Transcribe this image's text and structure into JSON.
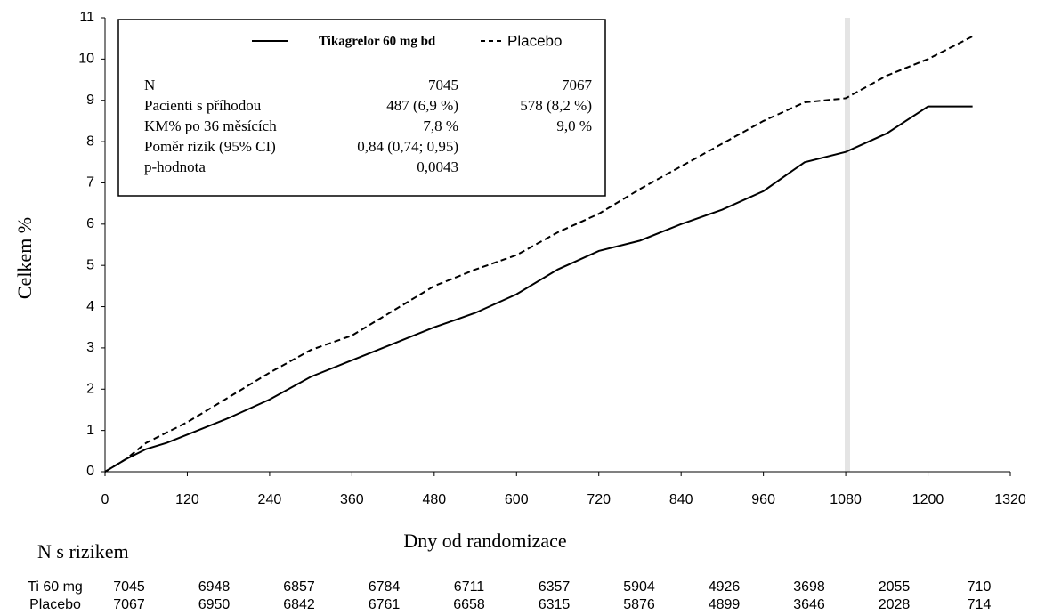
{
  "chart_data": {
    "type": "line",
    "y_label": "Celkem %",
    "x_label": "Dny od randomizace",
    "x": [
      0,
      30,
      60,
      90,
      120,
      180,
      240,
      300,
      360,
      420,
      480,
      540,
      600,
      660,
      720,
      780,
      840,
      900,
      960,
      1020,
      1080,
      1140,
      1200,
      1265
    ],
    "series": [
      {
        "name": "Tikagrelor 60 mg bd",
        "color": "#000000",
        "dash": "solid",
        "values": [
          0,
          0.3,
          0.55,
          0.7,
          0.9,
          1.3,
          1.75,
          2.3,
          2.7,
          3.1,
          3.5,
          3.85,
          4.3,
          4.9,
          5.35,
          5.6,
          6.0,
          6.35,
          6.8,
          7.5,
          7.75,
          8.2,
          8.85,
          8.85
        ]
      },
      {
        "name": "Placebo",
        "color": "#000000",
        "dash": "dashed",
        "values": [
          0,
          0.3,
          0.7,
          0.95,
          1.2,
          1.8,
          2.4,
          2.95,
          3.3,
          3.9,
          4.5,
          4.9,
          5.25,
          5.8,
          6.25,
          6.85,
          7.4,
          7.95,
          8.5,
          8.95,
          9.05,
          9.6,
          10.0,
          10.55
        ]
      }
    ],
    "xlim": [
      0,
      1320
    ],
    "xticks": [
      0,
      120,
      240,
      360,
      480,
      600,
      720,
      840,
      960,
      1080,
      1200,
      1320
    ],
    "ylim": [
      0,
      11
    ],
    "yticks": [
      0,
      1,
      2,
      3,
      4,
      5,
      6,
      7,
      8,
      9,
      10,
      11
    ],
    "grid": false,
    "legend_table": {
      "rows": [
        [
          "N",
          "7045",
          "7067"
        ],
        [
          "Pacienti s příhodou",
          "487 (6,9 %)",
          "578 (8,2 %)"
        ],
        [
          "KM% po 36 měsících",
          "7,8 %",
          "9,0 %"
        ],
        [
          "Poměr rizik (95% CI)",
          "0,84 (0,74; 0,95)"
        ],
        [
          "p-hodnota",
          "0,0043"
        ]
      ]
    },
    "at_risk": {
      "title": "N s rizikem",
      "rows": [
        {
          "label": "Ti 60 mg",
          "values": [
            7045,
            6948,
            6857,
            6784,
            6711,
            6357,
            5904,
            4926,
            3698,
            2055,
            710
          ]
        },
        {
          "label": "Placebo",
          "values": [
            7067,
            6950,
            6842,
            6761,
            6658,
            6315,
            5876,
            4899,
            3646,
            2028,
            714
          ]
        }
      ]
    }
  }
}
